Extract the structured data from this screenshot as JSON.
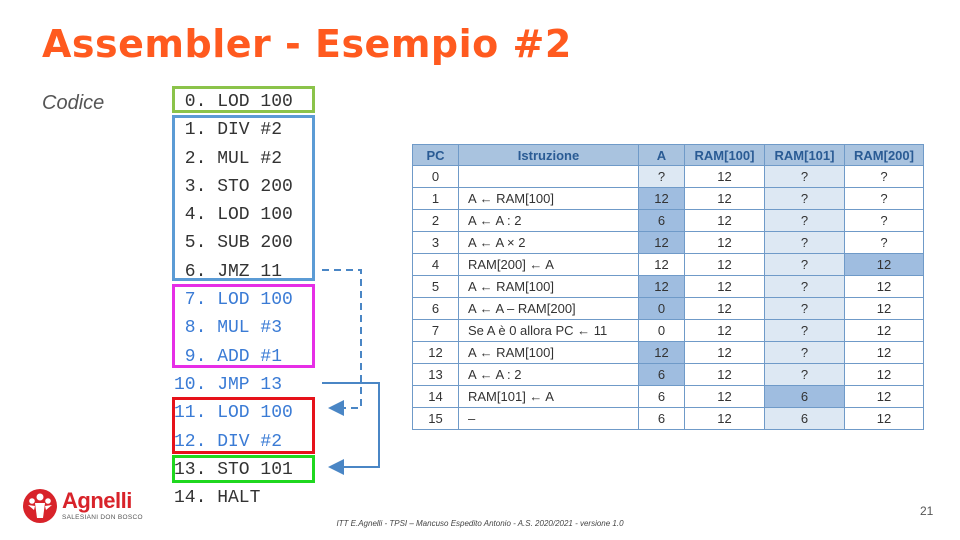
{
  "title": "Assembler - Esempio #2",
  "code_label": "Codice",
  "code_lines": [
    {
      "text": " 0. LOD 100",
      "style": "normal"
    },
    {
      "text": " 1. DIV #2",
      "style": "normal"
    },
    {
      "text": " 2. MUL #2",
      "style": "normal"
    },
    {
      "text": " 3. STO 200",
      "style": "normal"
    },
    {
      "text": " 4. LOD 100",
      "style": "normal"
    },
    {
      "text": " 5. SUB 200",
      "style": "normal"
    },
    {
      "text": " 6. JMZ 11",
      "style": "normal"
    },
    {
      "text": " 7. LOD 100",
      "style": "blue"
    },
    {
      "text": " 8. MUL #3",
      "style": "blue"
    },
    {
      "text": " 9. ADD #1",
      "style": "blue"
    },
    {
      "text": "10. JMP 13",
      "style": "blue"
    },
    {
      "text": "11. LOD 100",
      "style": "blue"
    },
    {
      "text": "12. DIV #2",
      "style": "blue"
    },
    {
      "text": "13. STO 101",
      "style": "normal"
    },
    {
      "text": "14. HALT",
      "style": "normal"
    }
  ],
  "box_colors": {
    "green_light": "#8bc34a",
    "blue": "#5b9bd5",
    "magenta": "#e62ee6",
    "red": "#e6121a",
    "green": "#1fd81f",
    "arrow": "#4a86c5"
  },
  "table": {
    "headers": [
      "PC",
      "Istruzione",
      "A",
      "RAM[100]",
      "RAM[101]",
      "RAM[200]"
    ],
    "rows": [
      {
        "pc": "0",
        "ist": "",
        "a": "?",
        "r100": "12",
        "r101": "?",
        "r200": "?"
      },
      {
        "pc": "1",
        "ist": "A ← RAM[100]",
        "a": "12",
        "r100": "12",
        "r101": "?",
        "r200": "?"
      },
      {
        "pc": "2",
        "ist": "A ← A : 2",
        "a": "6",
        "r100": "12",
        "r101": "?",
        "r200": "?"
      },
      {
        "pc": "3",
        "ist": "A ← A × 2",
        "a": "12",
        "r100": "12",
        "r101": "?",
        "r200": "?"
      },
      {
        "pc": "4",
        "ist": "RAM[200] ← A",
        "a": "12",
        "r100": "12",
        "r101": "?",
        "r200": "12"
      },
      {
        "pc": "5",
        "ist": "A ← RAM[100]",
        "a": "12",
        "r100": "12",
        "r101": "?",
        "r200": "12"
      },
      {
        "pc": "6",
        "ist": "A ← A – RAM[200]",
        "a": "0",
        "r100": "12",
        "r101": "?",
        "r200": "12"
      },
      {
        "pc": "7",
        "ist": "Se A è 0 allora PC ← 11",
        "a": "0",
        "r100": "12",
        "r101": "?",
        "r200": "12"
      },
      {
        "pc": "12",
        "ist": "A ← RAM[100]",
        "a": "12",
        "r100": "12",
        "r101": "?",
        "r200": "12"
      },
      {
        "pc": "13",
        "ist": "A ← A : 2",
        "a": "6",
        "r100": "12",
        "r101": "?",
        "r200": "12"
      },
      {
        "pc": "14",
        "ist": "RAM[101] ← A",
        "a": "6",
        "r100": "12",
        "r101": "6",
        "r200": "12"
      },
      {
        "pc": "15",
        "ist": "–",
        "a": "6",
        "r100": "12",
        "r101": "6",
        "r200": "12"
      }
    ]
  },
  "logo": {
    "name": "Agnelli",
    "sub": "SALESIANI DON BOSCO"
  },
  "page_number": "21",
  "footer": "ITT E.Agnelli - TPSI – Mancuso Espedito Antonio - A.S. 2020/2021 - versione 1.0"
}
